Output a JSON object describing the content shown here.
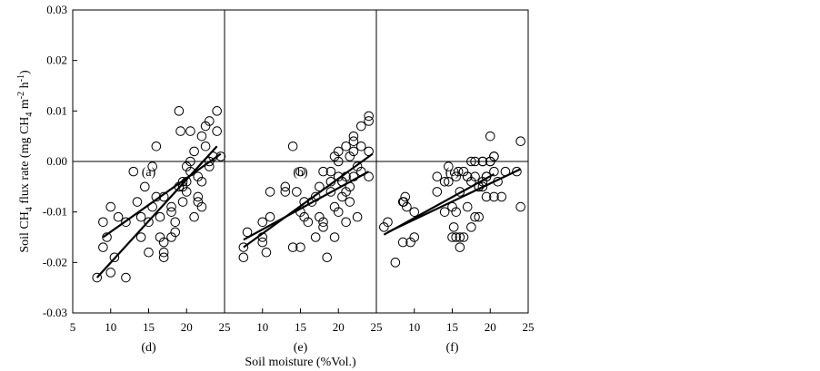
{
  "chart_data": {
    "type": "scatter",
    "xlabel": "Soil moisture (%Vol.)",
    "ylabel_parts": {
      "main": "Soil CH",
      "sub": "4",
      "mid": " flux rate (mg CH",
      "sub2": "4",
      "m": " m",
      "sup": "-2",
      "h": " h",
      "sup2": "-1",
      "close": ")"
    },
    "y_ticks": [
      "0.03",
      "0.02",
      "0.01",
      "0.00",
      "-0.01",
      "-0.02",
      "-0.03"
    ],
    "x_ticks": [
      "5",
      "10",
      "15",
      "20",
      "25",
      "5",
      "10",
      "15",
      "20",
      "25",
      "5",
      "10",
      "15",
      "20",
      "25"
    ],
    "y_range": [
      -0.03,
      0.03
    ],
    "x_range": [
      5,
      25
    ],
    "panels": [
      {
        "label": "(a)",
        "points": [
          [
            9,
            -0.012
          ],
          [
            9.5,
            -0.015
          ],
          [
            10,
            -0.009
          ],
          [
            10.5,
            -0.019
          ],
          [
            12,
            -0.012
          ],
          [
            13,
            -0.002
          ],
          [
            14.5,
            -0.005
          ],
          [
            15,
            -0.018
          ],
          [
            15.5,
            -0.001
          ],
          [
            16,
            0.003
          ],
          [
            16.5,
            -0.015
          ],
          [
            16.5,
            -0.011
          ],
          [
            17,
            -0.016
          ],
          [
            17,
            -0.007
          ],
          [
            18,
            -0.015
          ],
          [
            19,
            -0.005
          ],
          [
            19.2,
            0.006
          ],
          [
            19.5,
            -0.004
          ],
          [
            20,
            -0.006
          ],
          [
            20.5,
            -0.002
          ],
          [
            20.5,
            0.006
          ],
          [
            21,
            -0.011
          ],
          [
            21.5,
            -0.003
          ],
          [
            22,
            -0.009
          ],
          [
            22.5,
            0.003
          ],
          [
            22.5,
            0.007
          ],
          [
            23,
            -0.001
          ],
          [
            23.5,
            0.001
          ],
          [
            24.5,
            0.001
          ]
        ],
        "fit": [
          [
            9,
            -0.015
          ],
          [
            24.5,
            0.0015
          ]
        ]
      },
      {
        "label": "(b)",
        "points": [
          [
            7.5,
            -0.017
          ],
          [
            8,
            -0.014
          ],
          [
            10,
            -0.015
          ],
          [
            10,
            -0.016
          ],
          [
            11,
            -0.006
          ],
          [
            13,
            -0.006
          ],
          [
            14,
            0.003
          ],
          [
            14,
            -0.017
          ],
          [
            15,
            -0.017
          ],
          [
            15.5,
            -0.011
          ],
          [
            16.5,
            -0.008
          ],
          [
            17,
            -0.015
          ],
          [
            17.5,
            -0.005
          ],
          [
            18,
            -0.013
          ],
          [
            18.5,
            -0.019
          ],
          [
            19,
            -0.004
          ],
          [
            19,
            -0.002
          ],
          [
            19.5,
            -0.015
          ],
          [
            19.5,
            0.001
          ],
          [
            20,
            0.002
          ],
          [
            20,
            -0.003
          ],
          [
            20.5,
            -0.004
          ],
          [
            21,
            -0.003
          ],
          [
            21,
            0.003
          ],
          [
            21.5,
            -0.005
          ],
          [
            21.5,
            0.001
          ],
          [
            22,
            0.002
          ],
          [
            22,
            0.004
          ],
          [
            22.5,
            -0.001
          ],
          [
            23,
            0.007
          ],
          [
            24,
            0.009
          ],
          [
            24,
            0.002
          ]
        ],
        "fit": [
          [
            7.5,
            -0.017
          ],
          [
            24.5,
            0.0015
          ]
        ]
      },
      {
        "label": "(c)",
        "points": [
          [
            6.5,
            -0.012
          ],
          [
            8.5,
            -0.016
          ],
          [
            8.8,
            -0.007
          ],
          [
            9,
            -0.009
          ],
          [
            9.5,
            -0.016
          ],
          [
            10,
            -0.015
          ],
          [
            13,
            -0.006
          ],
          [
            14,
            -0.01
          ],
          [
            14.5,
            -0.004
          ],
          [
            15,
            -0.009
          ],
          [
            15.2,
            -0.013
          ],
          [
            15.5,
            -0.015
          ],
          [
            15.5,
            -0.003
          ],
          [
            16,
            -0.006
          ],
          [
            16.5,
            -0.002
          ],
          [
            17,
            -0.009
          ],
          [
            17,
            -0.003
          ],
          [
            17.5,
            -0.013
          ],
          [
            18,
            0.0
          ],
          [
            18.5,
            -0.005
          ],
          [
            19,
            -0.004
          ],
          [
            19,
            0.0
          ],
          [
            19.5,
            -0.003
          ],
          [
            20,
            0.0
          ],
          [
            20.5,
            -0.007
          ],
          [
            20.5,
            0.001
          ],
          [
            21,
            -0.004
          ],
          [
            21.5,
            -0.007
          ],
          [
            22,
            -0.002
          ],
          [
            23.5,
            -0.002
          ],
          [
            24,
            0.004
          ],
          [
            24,
            -0.009
          ]
        ],
        "fit": [
          [
            6.5,
            -0.014
          ],
          [
            24,
            -0.0015
          ]
        ]
      },
      {
        "label": "(d)",
        "points": [
          [
            8.2,
            -0.023
          ],
          [
            9,
            -0.017
          ],
          [
            10,
            -0.022
          ],
          [
            11,
            -0.011
          ],
          [
            12,
            -0.023
          ],
          [
            13.5,
            -0.008
          ],
          [
            14,
            -0.015
          ],
          [
            14,
            -0.011
          ],
          [
            15,
            -0.012
          ],
          [
            15.5,
            -0.009
          ],
          [
            16,
            -0.007
          ],
          [
            17,
            -0.018
          ],
          [
            17,
            -0.019
          ],
          [
            18,
            -0.009
          ],
          [
            18,
            -0.01
          ],
          [
            18.5,
            -0.014
          ],
          [
            18.5,
            -0.012
          ],
          [
            19,
            0.01
          ],
          [
            19.5,
            -0.005
          ],
          [
            19.5,
            -0.008
          ],
          [
            20,
            -0.001
          ],
          [
            20,
            -0.004
          ],
          [
            20.5,
            0.0
          ],
          [
            21,
            0.002
          ],
          [
            21.5,
            -0.007
          ],
          [
            21.5,
            -0.008
          ],
          [
            22,
            0.005
          ],
          [
            22,
            -0.004
          ],
          [
            23,
            0.008
          ],
          [
            23,
            0.0
          ],
          [
            24,
            0.006
          ],
          [
            24,
            0.01
          ]
        ],
        "fit": [
          [
            8.2,
            -0.023
          ],
          [
            24,
            0.003
          ]
        ]
      },
      {
        "label": "(e)",
        "points": [
          [
            7.5,
            -0.019
          ],
          [
            10,
            -0.012
          ],
          [
            10.5,
            -0.018
          ],
          [
            11,
            -0.011
          ],
          [
            13,
            -0.005
          ],
          [
            14.5,
            -0.006
          ],
          [
            15,
            -0.002
          ],
          [
            15,
            -0.01
          ],
          [
            15.5,
            -0.008
          ],
          [
            16,
            -0.012
          ],
          [
            17,
            -0.007
          ],
          [
            17.5,
            -0.011
          ],
          [
            18,
            -0.012
          ],
          [
            18,
            -0.002
          ],
          [
            19,
            -0.006
          ],
          [
            19.5,
            -0.009
          ],
          [
            20,
            -0.01
          ],
          [
            20,
            0.0
          ],
          [
            20.5,
            -0.004
          ],
          [
            20.5,
            -0.007
          ],
          [
            21,
            -0.012
          ],
          [
            21,
            -0.006
          ],
          [
            21.5,
            -0.008
          ],
          [
            22,
            0.005
          ],
          [
            22,
            -0.003
          ],
          [
            22.5,
            -0.011
          ],
          [
            23,
            0.003
          ],
          [
            23,
            -0.002
          ],
          [
            24,
            0.008
          ],
          [
            24,
            -0.003
          ]
        ],
        "fit": [
          [
            7.5,
            -0.0155
          ],
          [
            24,
            -0.002
          ]
        ]
      },
      {
        "label": "(f)",
        "points": [
          [
            6,
            -0.013
          ],
          [
            7.5,
            -0.02
          ],
          [
            8.5,
            -0.008
          ],
          [
            8.6,
            -0.008
          ],
          [
            10,
            -0.01
          ],
          [
            13,
            -0.003
          ],
          [
            14,
            -0.004
          ],
          [
            14.5,
            -0.001
          ],
          [
            15,
            -0.015
          ],
          [
            15.5,
            -0.01
          ],
          [
            15.8,
            -0.002
          ],
          [
            16,
            -0.017
          ],
          [
            16,
            -0.015
          ],
          [
            16.5,
            -0.015
          ],
          [
            17,
            -0.003
          ],
          [
            17.5,
            -0.004
          ],
          [
            17.5,
            0.0
          ],
          [
            18,
            -0.003
          ],
          [
            18,
            -0.011
          ],
          [
            18.5,
            -0.011
          ],
          [
            18.5,
            -0.005
          ],
          [
            19,
            -0.005
          ],
          [
            19,
            0.0
          ],
          [
            19.5,
            -0.007
          ],
          [
            19.5,
            -0.003
          ],
          [
            20,
            0.005
          ],
          [
            20,
            0.0
          ],
          [
            20.5,
            -0.002
          ],
          [
            20.5,
            0.001
          ]
        ],
        "fit": [
          [
            6,
            -0.0145
          ],
          [
            20.5,
            -0.0025
          ]
        ]
      }
    ]
  }
}
